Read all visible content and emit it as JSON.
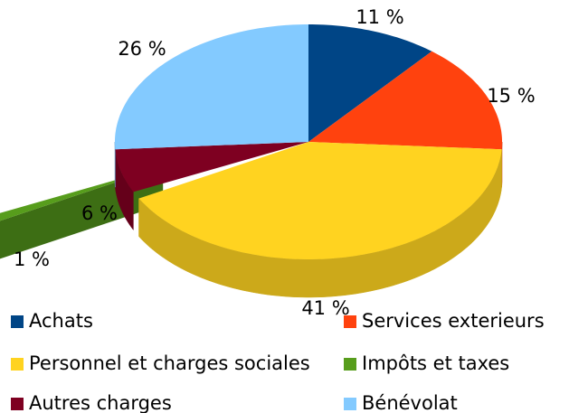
{
  "chart_data": {
    "type": "pie",
    "categories": [
      "Achats",
      "Services exterieurs",
      "Personnel et charges sociales",
      "Impôts et taxes",
      "Autres charges",
      "Bénévolat"
    ],
    "values": [
      11,
      15,
      41,
      1,
      6,
      26
    ],
    "value_labels": [
      "11 %",
      "15 %",
      "41 %",
      "1 %",
      "6 %",
      "26 %"
    ],
    "colors": [
      "#004586",
      "#ff420e",
      "#ffd320",
      "#579d1c",
      "#7e0021",
      "#83caff"
    ],
    "exploded": [
      "Impôts et taxes"
    ]
  }
}
